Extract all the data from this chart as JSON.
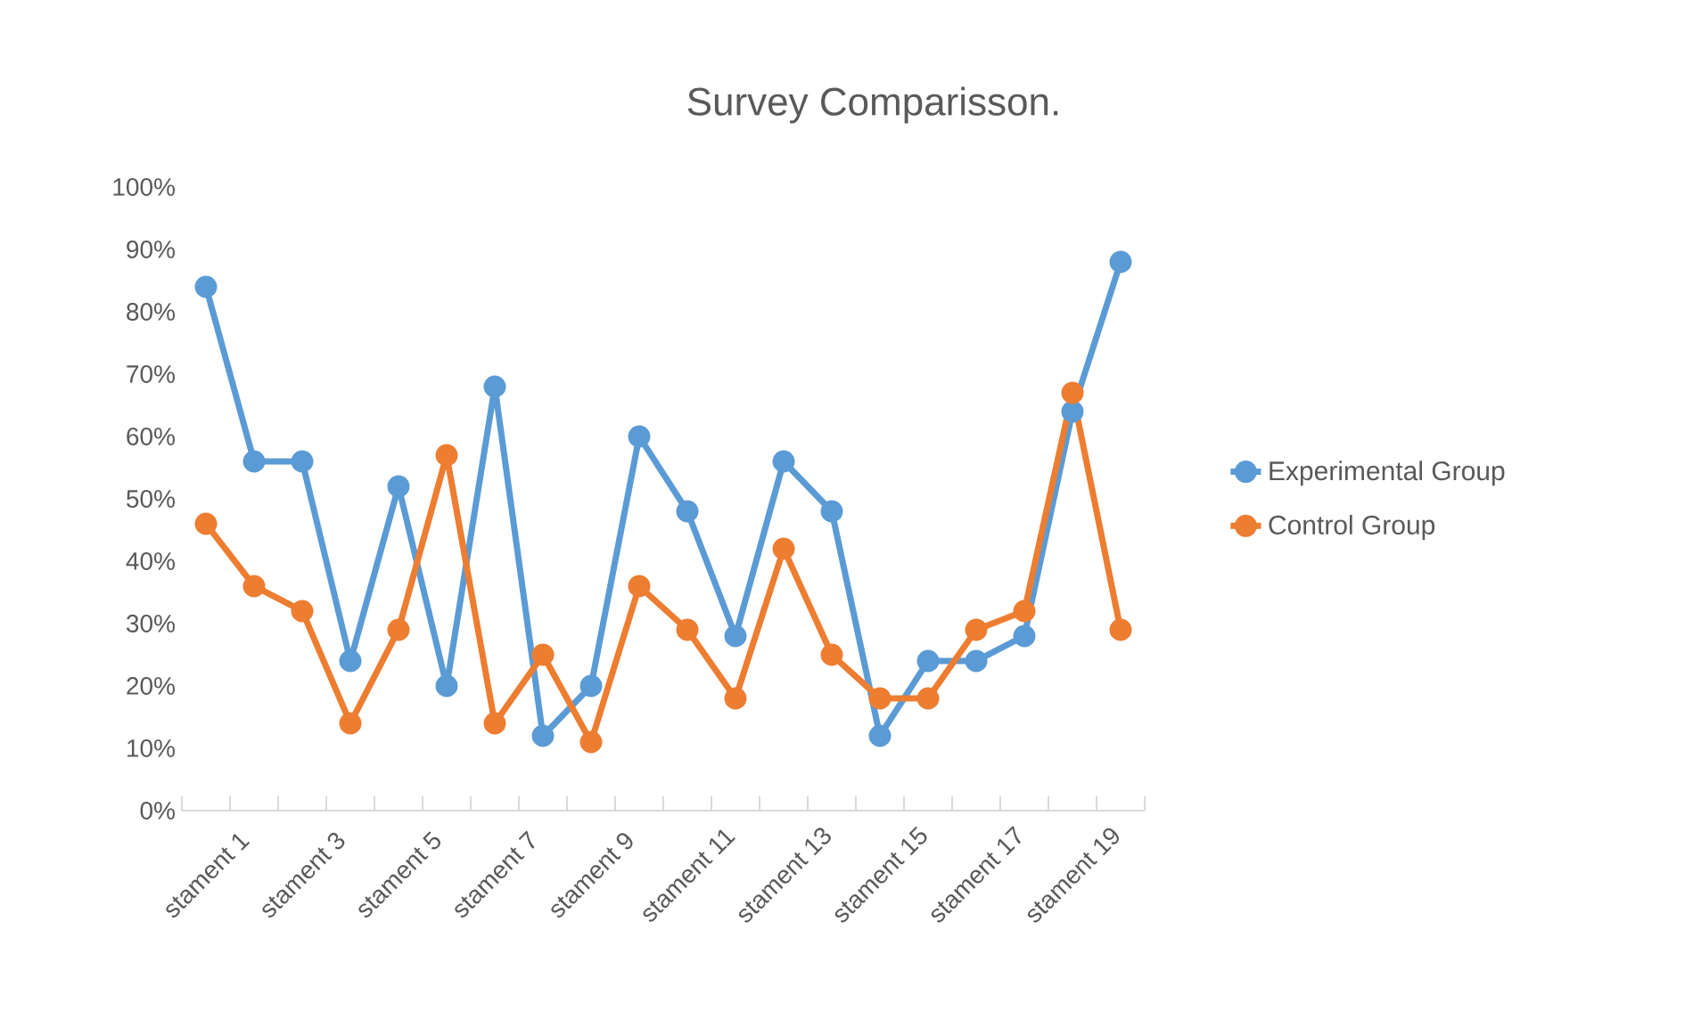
{
  "chart_data": {
    "type": "line",
    "title": "Survey Comparisson.",
    "categories": [
      "stament 1",
      null,
      "stament 3",
      null,
      "stament 5",
      null,
      "stament 7",
      null,
      "stament 9",
      null,
      "stament 11",
      null,
      "stament 13",
      null,
      "stament 15",
      null,
      "stament 17",
      null,
      "stament 19",
      null
    ],
    "series": [
      {
        "name": "Experimental Group",
        "color": "#5b9bd5",
        "values": [
          84,
          56,
          56,
          24,
          52,
          20,
          68,
          12,
          20,
          60,
          48,
          28,
          56,
          48,
          12,
          24,
          24,
          28,
          64,
          88
        ]
      },
      {
        "name": "Control Group",
        "color": "#ed7d31",
        "values": [
          46,
          36,
          32,
          14,
          29,
          57,
          14,
          25,
          11,
          36,
          29,
          18,
          42,
          25,
          18,
          18,
          29,
          32,
          67,
          29
        ]
      }
    ],
    "ylim": [
      0,
      100
    ],
    "yticks": [
      {
        "value": 0,
        "label": "0%"
      },
      {
        "value": 10,
        "label": "10%"
      },
      {
        "value": 20,
        "label": "20%"
      },
      {
        "value": 30,
        "label": "30%"
      },
      {
        "value": 40,
        "label": "40%"
      },
      {
        "value": 50,
        "label": "50%"
      },
      {
        "value": 60,
        "label": "60%"
      },
      {
        "value": 70,
        "label": "70%"
      },
      {
        "value": 80,
        "label": "80%"
      },
      {
        "value": 90,
        "label": "90%"
      },
      {
        "value": 100,
        "label": "100%"
      }
    ],
    "grid": false,
    "legend": "right",
    "marker": "circle",
    "line_style": "solid"
  }
}
